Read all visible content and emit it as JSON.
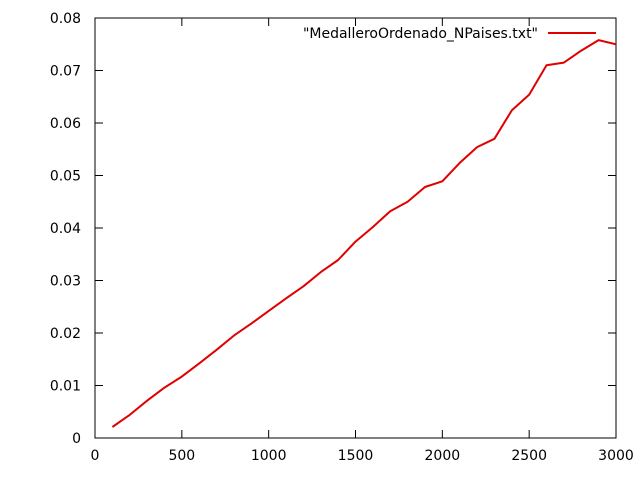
{
  "chart_data": {
    "type": "line",
    "title": "",
    "xlabel": "",
    "ylabel": "",
    "xlim": [
      0,
      3000
    ],
    "ylim": [
      0,
      0.08
    ],
    "grid": false,
    "legend_position": "top-right",
    "x_ticks": [
      "0",
      "500",
      "1000",
      "1500",
      "2000",
      "2500",
      "3000"
    ],
    "y_ticks": [
      "0",
      "0.01",
      "0.02",
      "0.03",
      "0.04",
      "0.05",
      "0.06",
      "0.07",
      "0.08"
    ],
    "series": [
      {
        "name": "\"MedalleroOrdenado_NPaises.txt\"",
        "color": "#e00000",
        "x": [
          100,
          200,
          300,
          400,
          500,
          600,
          700,
          800,
          900,
          1000,
          1100,
          1200,
          1300,
          1400,
          1500,
          1600,
          1700,
          1800,
          1900,
          2000,
          2100,
          2200,
          2300,
          2400,
          2500,
          2600,
          2700,
          2800,
          2900,
          3000
        ],
        "y": [
          0.0021,
          0.0044,
          0.0071,
          0.0096,
          0.0117,
          0.0142,
          0.0168,
          0.0195,
          0.0218,
          0.0242,
          0.0266,
          0.0289,
          0.0316,
          0.0339,
          0.0374,
          0.0402,
          0.0432,
          0.045,
          0.0478,
          0.0489,
          0.0524,
          0.0554,
          0.057,
          0.0624,
          0.0654,
          0.071,
          0.0715,
          0.0738,
          0.0758,
          0.075
        ]
      }
    ]
  }
}
